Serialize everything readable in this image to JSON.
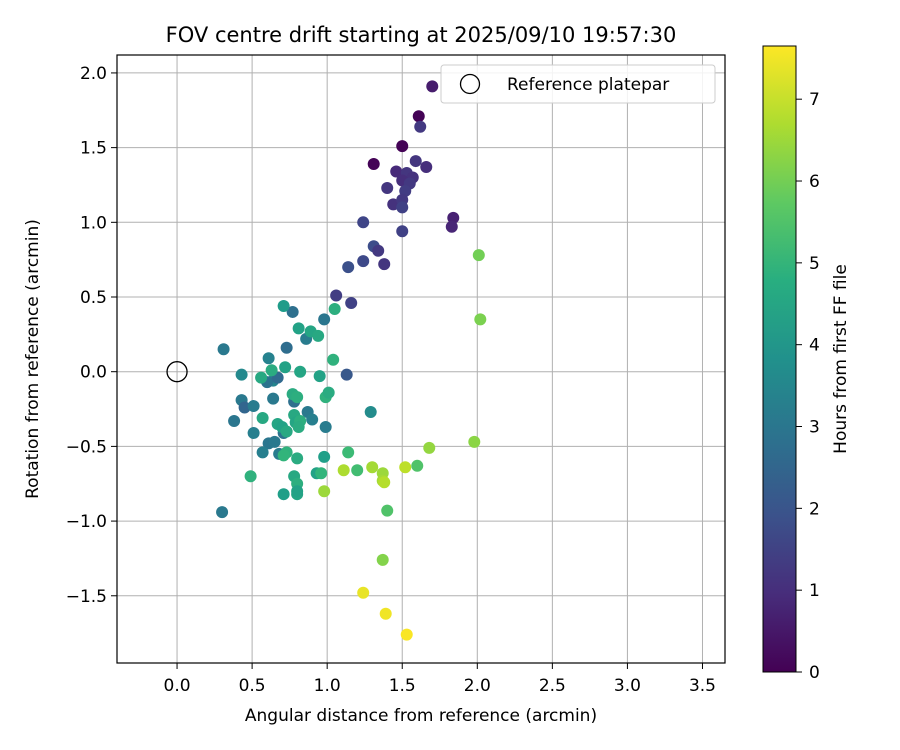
{
  "chart_data": {
    "type": "scatter",
    "title": "FOV centre drift starting at 2025/09/10 19:57:30",
    "xlabel": "Angular distance from reference (arcmin)",
    "ylabel": "Rotation from reference (arcmin)",
    "xlim": [
      -0.4,
      3.65
    ],
    "ylim": [
      -1.95,
      2.12
    ],
    "xticks": [
      0.0,
      0.5,
      1.0,
      1.5,
      2.0,
      2.5,
      3.0,
      3.5
    ],
    "xtick_labels": [
      "0.0",
      "0.5",
      "1.0",
      "1.5",
      "2.0",
      "2.5",
      "3.0",
      "3.5"
    ],
    "yticks": [
      -1.5,
      -1.0,
      -0.5,
      0.0,
      0.5,
      1.0,
      1.5,
      2.0
    ],
    "ytick_labels": [
      "−1.5",
      "−1.0",
      "−0.5",
      "0.0",
      "0.5",
      "1.0",
      "1.5",
      "2.0"
    ],
    "grid": true,
    "legend": {
      "position": "top-right",
      "entries": [
        "Reference platepar"
      ]
    },
    "reference_point": {
      "x": 0.0,
      "y": 0.0
    },
    "colorbar": {
      "label": "Hours from first FF file",
      "colormap": "viridis",
      "range": [
        0,
        7.65
      ],
      "ticks": [
        0,
        1,
        2,
        3,
        4,
        5,
        6,
        7
      ],
      "tick_labels": [
        "0",
        "1",
        "2",
        "3",
        "4",
        "5",
        "6",
        "7"
      ]
    },
    "points": [
      {
        "x": 1.61,
        "y": 1.71,
        "h": 0.05
      },
      {
        "x": 1.5,
        "y": 1.51,
        "h": 0.05
      },
      {
        "x": 1.31,
        "y": 1.39,
        "h": 0.05
      },
      {
        "x": 1.7,
        "y": 1.91,
        "h": 0.6
      },
      {
        "x": 1.62,
        "y": 1.64,
        "h": 1.3
      },
      {
        "x": 1.59,
        "y": 1.41,
        "h": 1.2
      },
      {
        "x": 1.66,
        "y": 1.37,
        "h": 1.0
      },
      {
        "x": 1.46,
        "y": 1.34,
        "h": 0.9
      },
      {
        "x": 1.53,
        "y": 1.33,
        "h": 1.2
      },
      {
        "x": 1.57,
        "y": 1.3,
        "h": 1.1
      },
      {
        "x": 1.5,
        "y": 1.28,
        "h": 1.0
      },
      {
        "x": 1.55,
        "y": 1.26,
        "h": 1.3
      },
      {
        "x": 1.4,
        "y": 1.23,
        "h": 1.2
      },
      {
        "x": 1.52,
        "y": 1.21,
        "h": 1.4
      },
      {
        "x": 1.44,
        "y": 1.12,
        "h": 1.1
      },
      {
        "x": 1.5,
        "y": 1.15,
        "h": 1.3
      },
      {
        "x": 1.5,
        "y": 1.1,
        "h": 1.5
      },
      {
        "x": 1.84,
        "y": 1.03,
        "h": 0.7
      },
      {
        "x": 1.83,
        "y": 0.97,
        "h": 0.8
      },
      {
        "x": 1.24,
        "y": 1.0,
        "h": 1.6
      },
      {
        "x": 1.5,
        "y": 0.94,
        "h": 1.5
      },
      {
        "x": 1.31,
        "y": 0.84,
        "h": 1.8
      },
      {
        "x": 1.34,
        "y": 0.81,
        "h": 1.3
      },
      {
        "x": 1.24,
        "y": 0.74,
        "h": 1.7
      },
      {
        "x": 1.14,
        "y": 0.7,
        "h": 1.9
      },
      {
        "x": 1.38,
        "y": 0.72,
        "h": 1.2
      },
      {
        "x": 1.06,
        "y": 0.51,
        "h": 1.4
      },
      {
        "x": 1.16,
        "y": 0.46,
        "h": 1.5
      },
      {
        "x": 1.13,
        "y": -0.02,
        "h": 2.1
      },
      {
        "x": 0.98,
        "y": 0.35,
        "h": 3.0
      },
      {
        "x": 0.77,
        "y": 0.4,
        "h": 2.8
      },
      {
        "x": 0.73,
        "y": 0.16,
        "h": 2.7
      },
      {
        "x": 0.86,
        "y": 0.22,
        "h": 3.2
      },
      {
        "x": 0.31,
        "y": 0.15,
        "h": 3.1
      },
      {
        "x": 0.61,
        "y": 0.09,
        "h": 3.4
      },
      {
        "x": 0.64,
        "y": -0.06,
        "h": 3.5
      },
      {
        "x": 0.6,
        "y": -0.07,
        "h": 2.9
      },
      {
        "x": 0.67,
        "y": -0.04,
        "h": 2.6
      },
      {
        "x": 0.43,
        "y": -0.02,
        "h": 3.6
      },
      {
        "x": 0.43,
        "y": -0.19,
        "h": 3.1
      },
      {
        "x": 0.45,
        "y": -0.24,
        "h": 2.5
      },
      {
        "x": 0.51,
        "y": -0.23,
        "h": 3.2
      },
      {
        "x": 0.38,
        "y": -0.33,
        "h": 3.0
      },
      {
        "x": 0.64,
        "y": -0.18,
        "h": 3.1
      },
      {
        "x": 0.51,
        "y": -0.41,
        "h": 3.3
      },
      {
        "x": 0.61,
        "y": -0.48,
        "h": 3.0
      },
      {
        "x": 0.65,
        "y": -0.47,
        "h": 3.1
      },
      {
        "x": 0.57,
        "y": -0.54,
        "h": 3.3
      },
      {
        "x": 0.68,
        "y": -0.55,
        "h": 3.2
      },
      {
        "x": 0.71,
        "y": -0.41,
        "h": 2.9
      },
      {
        "x": 0.78,
        "y": -0.2,
        "h": 2.8
      },
      {
        "x": 0.87,
        "y": -0.27,
        "h": 3.1
      },
      {
        "x": 0.99,
        "y": -0.37,
        "h": 3.2
      },
      {
        "x": 0.9,
        "y": -0.32,
        "h": 3.3
      },
      {
        "x": 0.3,
        "y": -0.94,
        "h": 3.1
      },
      {
        "x": 1.29,
        "y": -0.27,
        "h": 3.7
      },
      {
        "x": 0.71,
        "y": 0.44,
        "h": 4.2
      },
      {
        "x": 0.81,
        "y": 0.29,
        "h": 4.4
      },
      {
        "x": 0.89,
        "y": 0.27,
        "h": 4.5
      },
      {
        "x": 0.94,
        "y": 0.24,
        "h": 4.6
      },
      {
        "x": 1.05,
        "y": 0.42,
        "h": 4.8
      },
      {
        "x": 1.04,
        "y": 0.08,
        "h": 4.9
      },
      {
        "x": 0.72,
        "y": 0.03,
        "h": 4.4
      },
      {
        "x": 0.56,
        "y": -0.04,
        "h": 4.6
      },
      {
        "x": 0.63,
        "y": 0.01,
        "h": 4.7
      },
      {
        "x": 0.82,
        "y": 0.0,
        "h": 4.5
      },
      {
        "x": 0.95,
        "y": -0.03,
        "h": 4.4
      },
      {
        "x": 0.77,
        "y": -0.15,
        "h": 4.7
      },
      {
        "x": 0.8,
        "y": -0.17,
        "h": 4.8
      },
      {
        "x": 0.99,
        "y": -0.17,
        "h": 4.9
      },
      {
        "x": 1.01,
        "y": -0.14,
        "h": 4.7
      },
      {
        "x": 0.57,
        "y": -0.31,
        "h": 4.6
      },
      {
        "x": 0.67,
        "y": -0.35,
        "h": 4.5
      },
      {
        "x": 0.7,
        "y": -0.37,
        "h": 4.4
      },
      {
        "x": 0.78,
        "y": -0.29,
        "h": 4.6
      },
      {
        "x": 0.79,
        "y": -0.34,
        "h": 4.5
      },
      {
        "x": 0.82,
        "y": -0.33,
        "h": 4.8
      },
      {
        "x": 0.81,
        "y": -0.37,
        "h": 4.7
      },
      {
        "x": 0.73,
        "y": -0.4,
        "h": 4.6
      },
      {
        "x": 0.73,
        "y": -0.54,
        "h": 4.9
      },
      {
        "x": 0.71,
        "y": -0.56,
        "h": 5.0
      },
      {
        "x": 0.8,
        "y": -0.58,
        "h": 4.7
      },
      {
        "x": 0.93,
        "y": -0.68,
        "h": 4.4
      },
      {
        "x": 0.96,
        "y": -0.68,
        "h": 5.0
      },
      {
        "x": 0.98,
        "y": -0.57,
        "h": 4.3
      },
      {
        "x": 0.78,
        "y": -0.7,
        "h": 4.6
      },
      {
        "x": 0.8,
        "y": -0.75,
        "h": 4.8
      },
      {
        "x": 0.49,
        "y": -0.7,
        "h": 4.9
      },
      {
        "x": 0.71,
        "y": -0.82,
        "h": 4.3
      },
      {
        "x": 0.8,
        "y": -0.82,
        "h": 4.5
      },
      {
        "x": 0.8,
        "y": -0.8,
        "h": 4.4
      },
      {
        "x": 1.14,
        "y": -0.54,
        "h": 5.2
      },
      {
        "x": 1.2,
        "y": -0.66,
        "h": 5.3
      },
      {
        "x": 1.6,
        "y": -0.63,
        "h": 5.5
      },
      {
        "x": 1.4,
        "y": -0.93,
        "h": 5.5
      },
      {
        "x": 2.01,
        "y": 0.78,
        "h": 6.0
      },
      {
        "x": 2.02,
        "y": 0.35,
        "h": 6.1
      },
      {
        "x": 1.98,
        "y": -0.47,
        "h": 6.3
      },
      {
        "x": 1.68,
        "y": -0.51,
        "h": 6.4
      },
      {
        "x": 1.11,
        "y": -0.66,
        "h": 6.7
      },
      {
        "x": 1.3,
        "y": -0.64,
        "h": 6.6
      },
      {
        "x": 1.37,
        "y": -0.68,
        "h": 6.5
      },
      {
        "x": 1.37,
        "y": -0.73,
        "h": 6.6
      },
      {
        "x": 1.38,
        "y": -0.74,
        "h": 6.8
      },
      {
        "x": 1.52,
        "y": -0.64,
        "h": 6.9
      },
      {
        "x": 0.98,
        "y": -0.8,
        "h": 6.5
      },
      {
        "x": 1.37,
        "y": -1.26,
        "h": 6.2
      },
      {
        "x": 1.24,
        "y": -1.48,
        "h": 7.4
      },
      {
        "x": 1.39,
        "y": -1.62,
        "h": 7.5
      },
      {
        "x": 1.53,
        "y": -1.76,
        "h": 7.6
      }
    ]
  }
}
